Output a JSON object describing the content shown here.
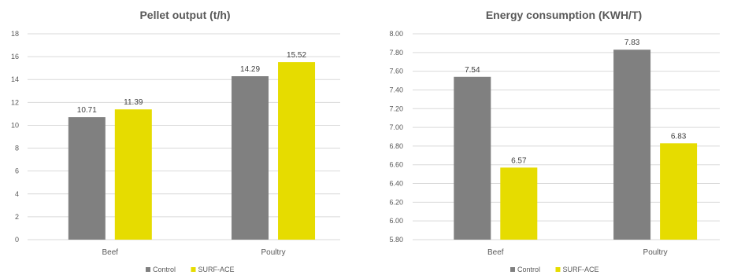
{
  "chart_data": [
    {
      "type": "bar",
      "title": "Pellet output (t/h)",
      "categories": [
        "Beef",
        "Poultry"
      ],
      "series": [
        {
          "name": "Control",
          "values": [
            10.71,
            14.29
          ],
          "labels": [
            "10.71",
            "14.29"
          ],
          "color": "#808080"
        },
        {
          "name": "SURF-ACE",
          "values": [
            11.39,
            15.52
          ],
          "labels": [
            "11.39",
            "15.52"
          ],
          "color": "#e6dc00"
        }
      ],
      "ylim": [
        0,
        18
      ],
      "yticks": [
        "0",
        "2",
        "4",
        "6",
        "8",
        "10",
        "12",
        "14",
        "16",
        "18"
      ],
      "grid": true,
      "legend": "bottom"
    },
    {
      "type": "bar",
      "title": "Energy consumption (KWH/T)",
      "categories": [
        "Beef",
        "Poultry"
      ],
      "series": [
        {
          "name": "Control",
          "values": [
            7.54,
            7.83
          ],
          "labels": [
            "7.54",
            "7.83"
          ],
          "color": "#808080"
        },
        {
          "name": "SURF-ACE",
          "values": [
            6.57,
            6.83
          ],
          "labels": [
            "6.57",
            "6.83"
          ],
          "color": "#e6dc00"
        }
      ],
      "ylim": [
        5.8,
        8.0
      ],
      "yticks": [
        "5.80",
        "6.00",
        "6.20",
        "6.40",
        "6.60",
        "6.80",
        "7.00",
        "7.20",
        "7.40",
        "7.60",
        "7.80",
        "8.00"
      ],
      "grid": true,
      "legend": "bottom"
    }
  ]
}
